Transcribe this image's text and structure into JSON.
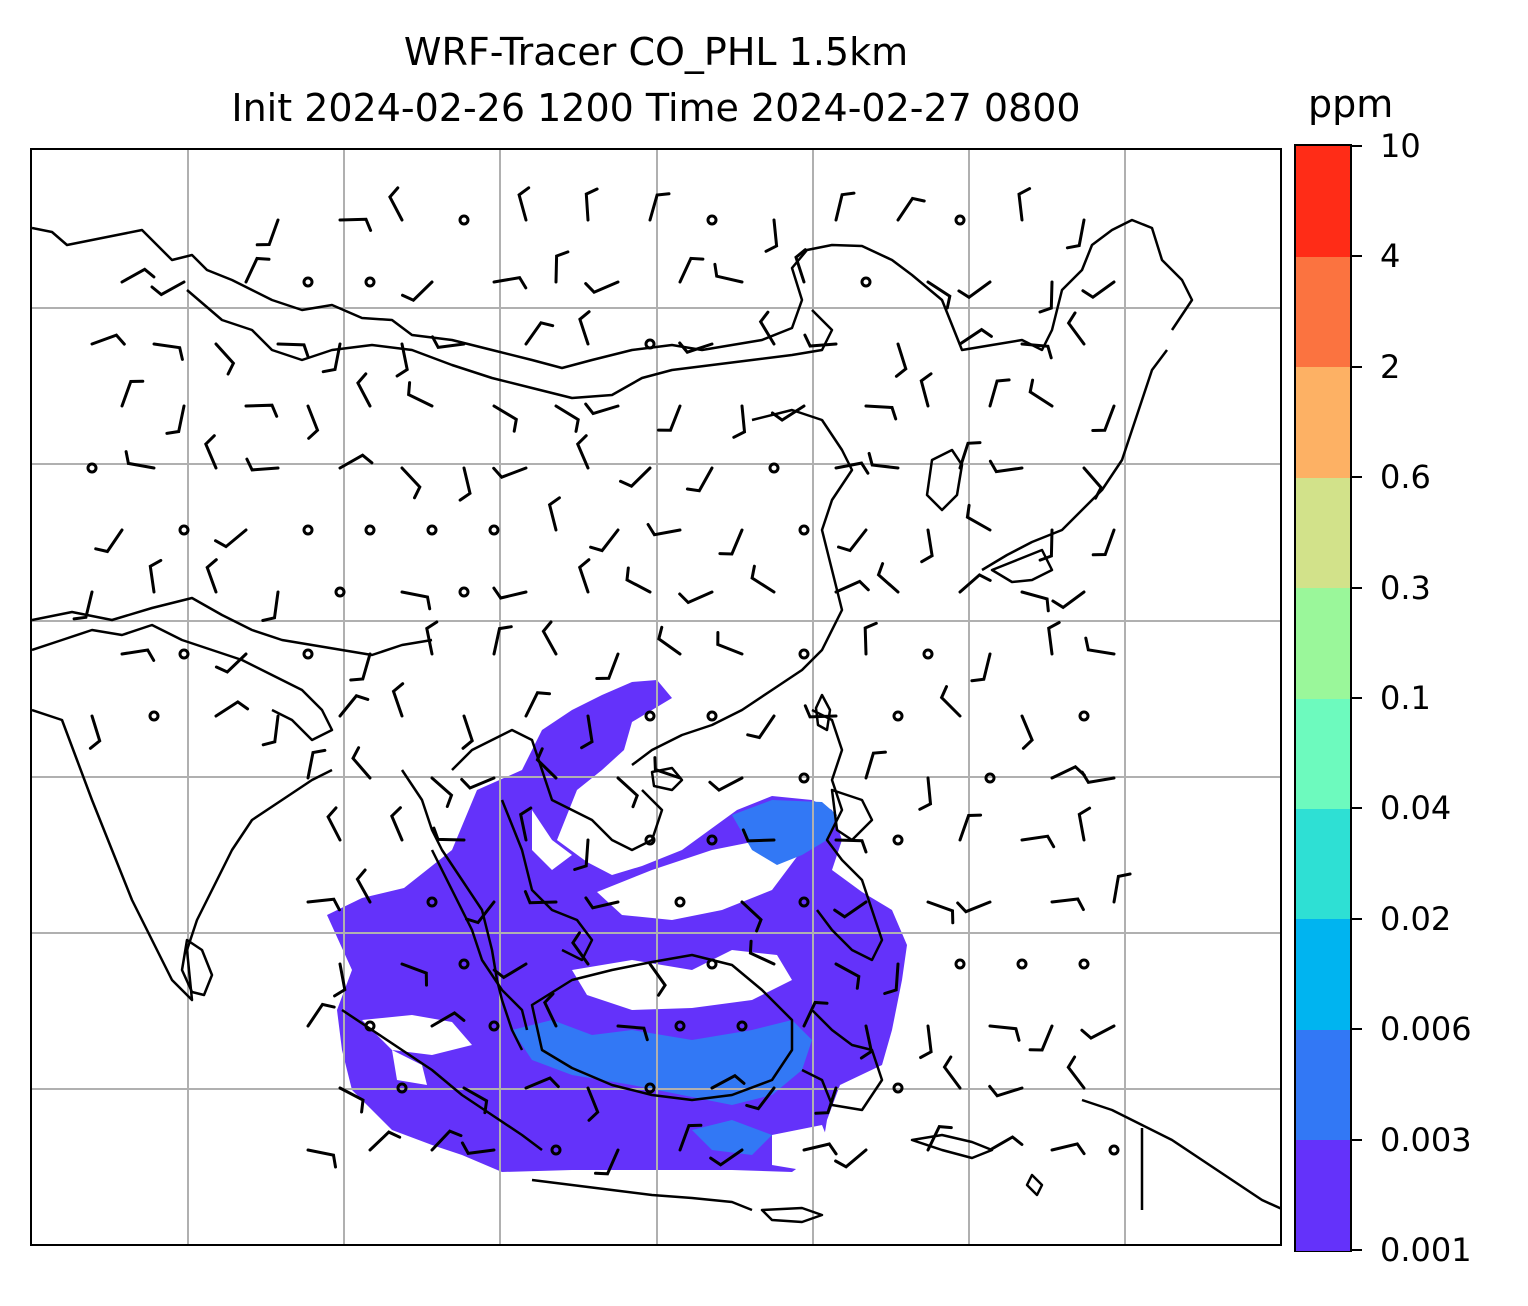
{
  "title": {
    "line1": "WRF-Tracer CO_PHL 1.5km",
    "line2": "Init 2024-02-26 1200 Time 2024-02-27 0800"
  },
  "colorbar": {
    "unit": "ppm",
    "levels": [
      "0.001",
      "0.003",
      "0.006",
      "0.02",
      "0.04",
      "0.1",
      "0.3",
      "0.6",
      "2",
      "4",
      "10"
    ],
    "colors": [
      "#6432fa",
      "#3278f5",
      "#00b4f0",
      "#2ee0d4",
      "#6dfabe",
      "#9af79a",
      "#d2e28a",
      "#fdb164",
      "#fb7340",
      "#ff2c17"
    ]
  },
  "map": {
    "gridlines": true,
    "grid_color": "#b0b0b0",
    "plume_color": "#6432fa",
    "plume_core_color": "#3278f5",
    "coastline_color": "#000000",
    "wind_barb_color": "#000000"
  }
}
